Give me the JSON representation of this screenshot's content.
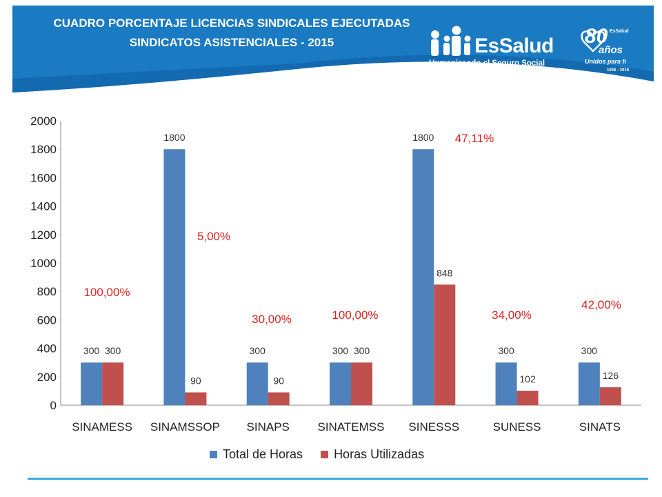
{
  "header": {
    "title_line1": "CUADRO PORCENTAJE LICENCIAS  SINDICALES EJECUTADAS",
    "title_line2": "SINDICATOS ASISTENCIALES - 2015",
    "logo_name": "EsSalud",
    "logo_tagline": "Humanizando el Seguro Social",
    "anniversary_number": "80",
    "anniversary_word": "años",
    "anniversary_tagline": "Unidos para ti",
    "anniversary_brand": "EsSalud",
    "anniversary_years": "1936 - 2016"
  },
  "colors": {
    "banner": "#1a7ac2",
    "banner_dark": "#0f5fa3",
    "series_total": "#4f81bd",
    "series_used": "#c0504d",
    "percent_text": "#e02020"
  },
  "chart_data": {
    "type": "bar",
    "categories": [
      "SINAMESS",
      "SINAMSSOP",
      "SINAPS",
      "SINATEMSS",
      "SINESSS",
      "SUNESS",
      "SINATS"
    ],
    "series": [
      {
        "name": "Total de Horas",
        "values": [
          300,
          1800,
          300,
          300,
          1800,
          300,
          300
        ]
      },
      {
        "name": "Horas Utilizadas",
        "values": [
          300,
          90,
          90,
          300,
          848,
          102,
          126
        ]
      }
    ],
    "percent_labels": [
      "100,00%",
      "5,00%",
      "30,00%",
      "100,00%",
      "47,11%",
      "34,00%",
      "42,00%"
    ],
    "y_ticks": [
      "0",
      "200",
      "400",
      "600",
      "800",
      "1000",
      "1200",
      "1400",
      "1600",
      "1800",
      "2000"
    ],
    "ylim": [
      0,
      2000
    ],
    "legend_position": "bottom",
    "grid": false
  }
}
